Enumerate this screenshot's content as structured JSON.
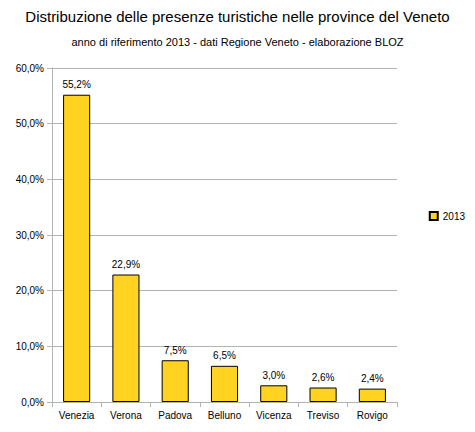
{
  "chart_data": {
    "type": "bar",
    "title": "Distribuzione delle presenze turistiche nelle province del Veneto",
    "subtitle": "anno di riferimento 2013 - dati Regione Veneto - elaborazione BLOZ",
    "categories": [
      "Venezia",
      "Verona",
      "Padova",
      "Belluno",
      "Vicenza",
      "Treviso",
      "Rovigo"
    ],
    "series": [
      {
        "name": "2013",
        "color": "#ffd320",
        "values": [
          55.2,
          22.9,
          7.5,
          6.5,
          3.0,
          2.6,
          2.4
        ],
        "value_labels": [
          "55,2%",
          "22,9%",
          "7,5%",
          "6,5%",
          "3,0%",
          "2,6%",
          "2,4%"
        ]
      }
    ],
    "ylim": [
      0,
      60
    ],
    "yticks": [
      {
        "value": 0,
        "label": "0,0%"
      },
      {
        "value": 10,
        "label": "10,0%"
      },
      {
        "value": 20,
        "label": "20,0%"
      },
      {
        "value": 30,
        "label": "30,0%"
      },
      {
        "value": 40,
        "label": "40,0%"
      },
      {
        "value": 50,
        "label": "50,0%"
      },
      {
        "value": 60,
        "label": "60,0%"
      }
    ],
    "grid": true,
    "legend": "right",
    "data_labels": true
  }
}
